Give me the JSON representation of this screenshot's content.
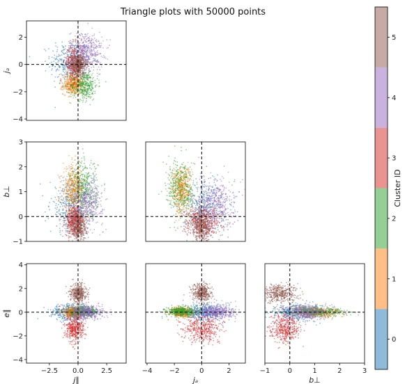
{
  "chart_data": {
    "type": "scatter",
    "title": "Triangle plots with 50000 points",
    "layout": "lower-triangle corner plot",
    "variables": [
      {
        "key": "j_par",
        "label": "j∥",
        "lim": [
          -4.5,
          4.2
        ],
        "ticks": [
          -2.5,
          0.0,
          2.5
        ],
        "tick_labels": [
          "−2.5",
          "0.0",
          "2.5"
        ]
      },
      {
        "key": "j_a",
        "label": "jₐ",
        "lim": [
          -4.1,
          3.2
        ],
        "ticks": [
          -4,
          -2,
          0,
          2
        ],
        "tick_labels": [
          "−4",
          "−2",
          "0",
          "2"
        ]
      },
      {
        "key": "b_perp",
        "label": "b⊥",
        "lim": [
          -1.0,
          3.0
        ],
        "ticks": [
          -1,
          0,
          1,
          2,
          3
        ],
        "tick_labels": [
          "−1",
          "0",
          "1",
          "2",
          "3"
        ]
      },
      {
        "key": "e_par",
        "label": "e∥",
        "lim": [
          -4.3,
          4.1
        ],
        "ticks": [
          -4,
          -2,
          0,
          2,
          4
        ],
        "tick_labels": [
          "−4",
          "−2",
          "0",
          "2",
          "4"
        ]
      }
    ],
    "panels": [
      {
        "row": 0,
        "col": 0,
        "x": "j_par",
        "y": "j_a"
      },
      {
        "row": 1,
        "col": 0,
        "x": "j_par",
        "y": "b_perp"
      },
      {
        "row": 1,
        "col": 1,
        "x": "j_a",
        "y": "b_perp"
      },
      {
        "row": 2,
        "col": 0,
        "x": "j_par",
        "y": "e_par"
      },
      {
        "row": 2,
        "col": 1,
        "x": "j_a",
        "y": "e_par"
      },
      {
        "row": 2,
        "col": 2,
        "x": "b_perp",
        "y": "e_par"
      }
    ],
    "reference_lines": {
      "x": 0,
      "y": 0,
      "style": "dashed",
      "color": "#000000"
    },
    "series": [
      {
        "id": 0,
        "color": "#1f77b4",
        "center": {
          "j_par": -0.6,
          "j_a": 0.2,
          "b_perp": 0.4,
          "e_par": 0.0
        },
        "spread": {
          "j_par": 0.9,
          "j_a": 0.8,
          "b_perp": 0.55,
          "e_par": 0.35
        }
      },
      {
        "id": 1,
        "color": "#ff7f0e",
        "center": {
          "j_par": -0.4,
          "j_a": -1.5,
          "b_perp": 1.1,
          "e_par": 0.0
        },
        "spread": {
          "j_par": 0.45,
          "j_a": 0.35,
          "b_perp": 0.45,
          "e_par": 0.2
        }
      },
      {
        "id": 2,
        "color": "#2ca02c",
        "center": {
          "j_par": 0.5,
          "j_a": -1.5,
          "b_perp": 1.1,
          "e_par": 0.05
        },
        "spread": {
          "j_par": 0.6,
          "j_a": 0.55,
          "b_perp": 0.6,
          "e_par": 0.2
        }
      },
      {
        "id": 3,
        "color": "#d62728",
        "center": {
          "j_par": -0.3,
          "j_a": 0.1,
          "b_perp": -0.2,
          "e_par": -1.4
        },
        "spread": {
          "j_par": 0.4,
          "j_a": 0.7,
          "b_perp": 0.3,
          "e_par": 0.55
        }
      },
      {
        "id": 4,
        "color": "#9467bd",
        "center": {
          "j_par": 0.8,
          "j_a": 1.0,
          "b_perp": 0.6,
          "e_par": 0.0
        },
        "spread": {
          "j_par": 0.7,
          "j_a": 0.7,
          "b_perp": 0.45,
          "e_par": 0.3
        }
      },
      {
        "id": 5,
        "color": "#8c564b",
        "center": {
          "j_par": 0.05,
          "j_a": 0.0,
          "b_perp": -0.4,
          "e_par": 1.6
        },
        "spread": {
          "j_par": 0.35,
          "j_a": 0.35,
          "b_perp": 0.35,
          "e_par": 0.4
        }
      }
    ],
    "colorbar": {
      "label": "Cluster ID",
      "tick_labels": [
        "0",
        "1",
        "2",
        "3",
        "4",
        "5"
      ],
      "colors": [
        "#1f77b4",
        "#ff7f0e",
        "#2ca02c",
        "#d62728",
        "#9467bd",
        "#8c564b"
      ],
      "alpha": 0.5
    }
  }
}
